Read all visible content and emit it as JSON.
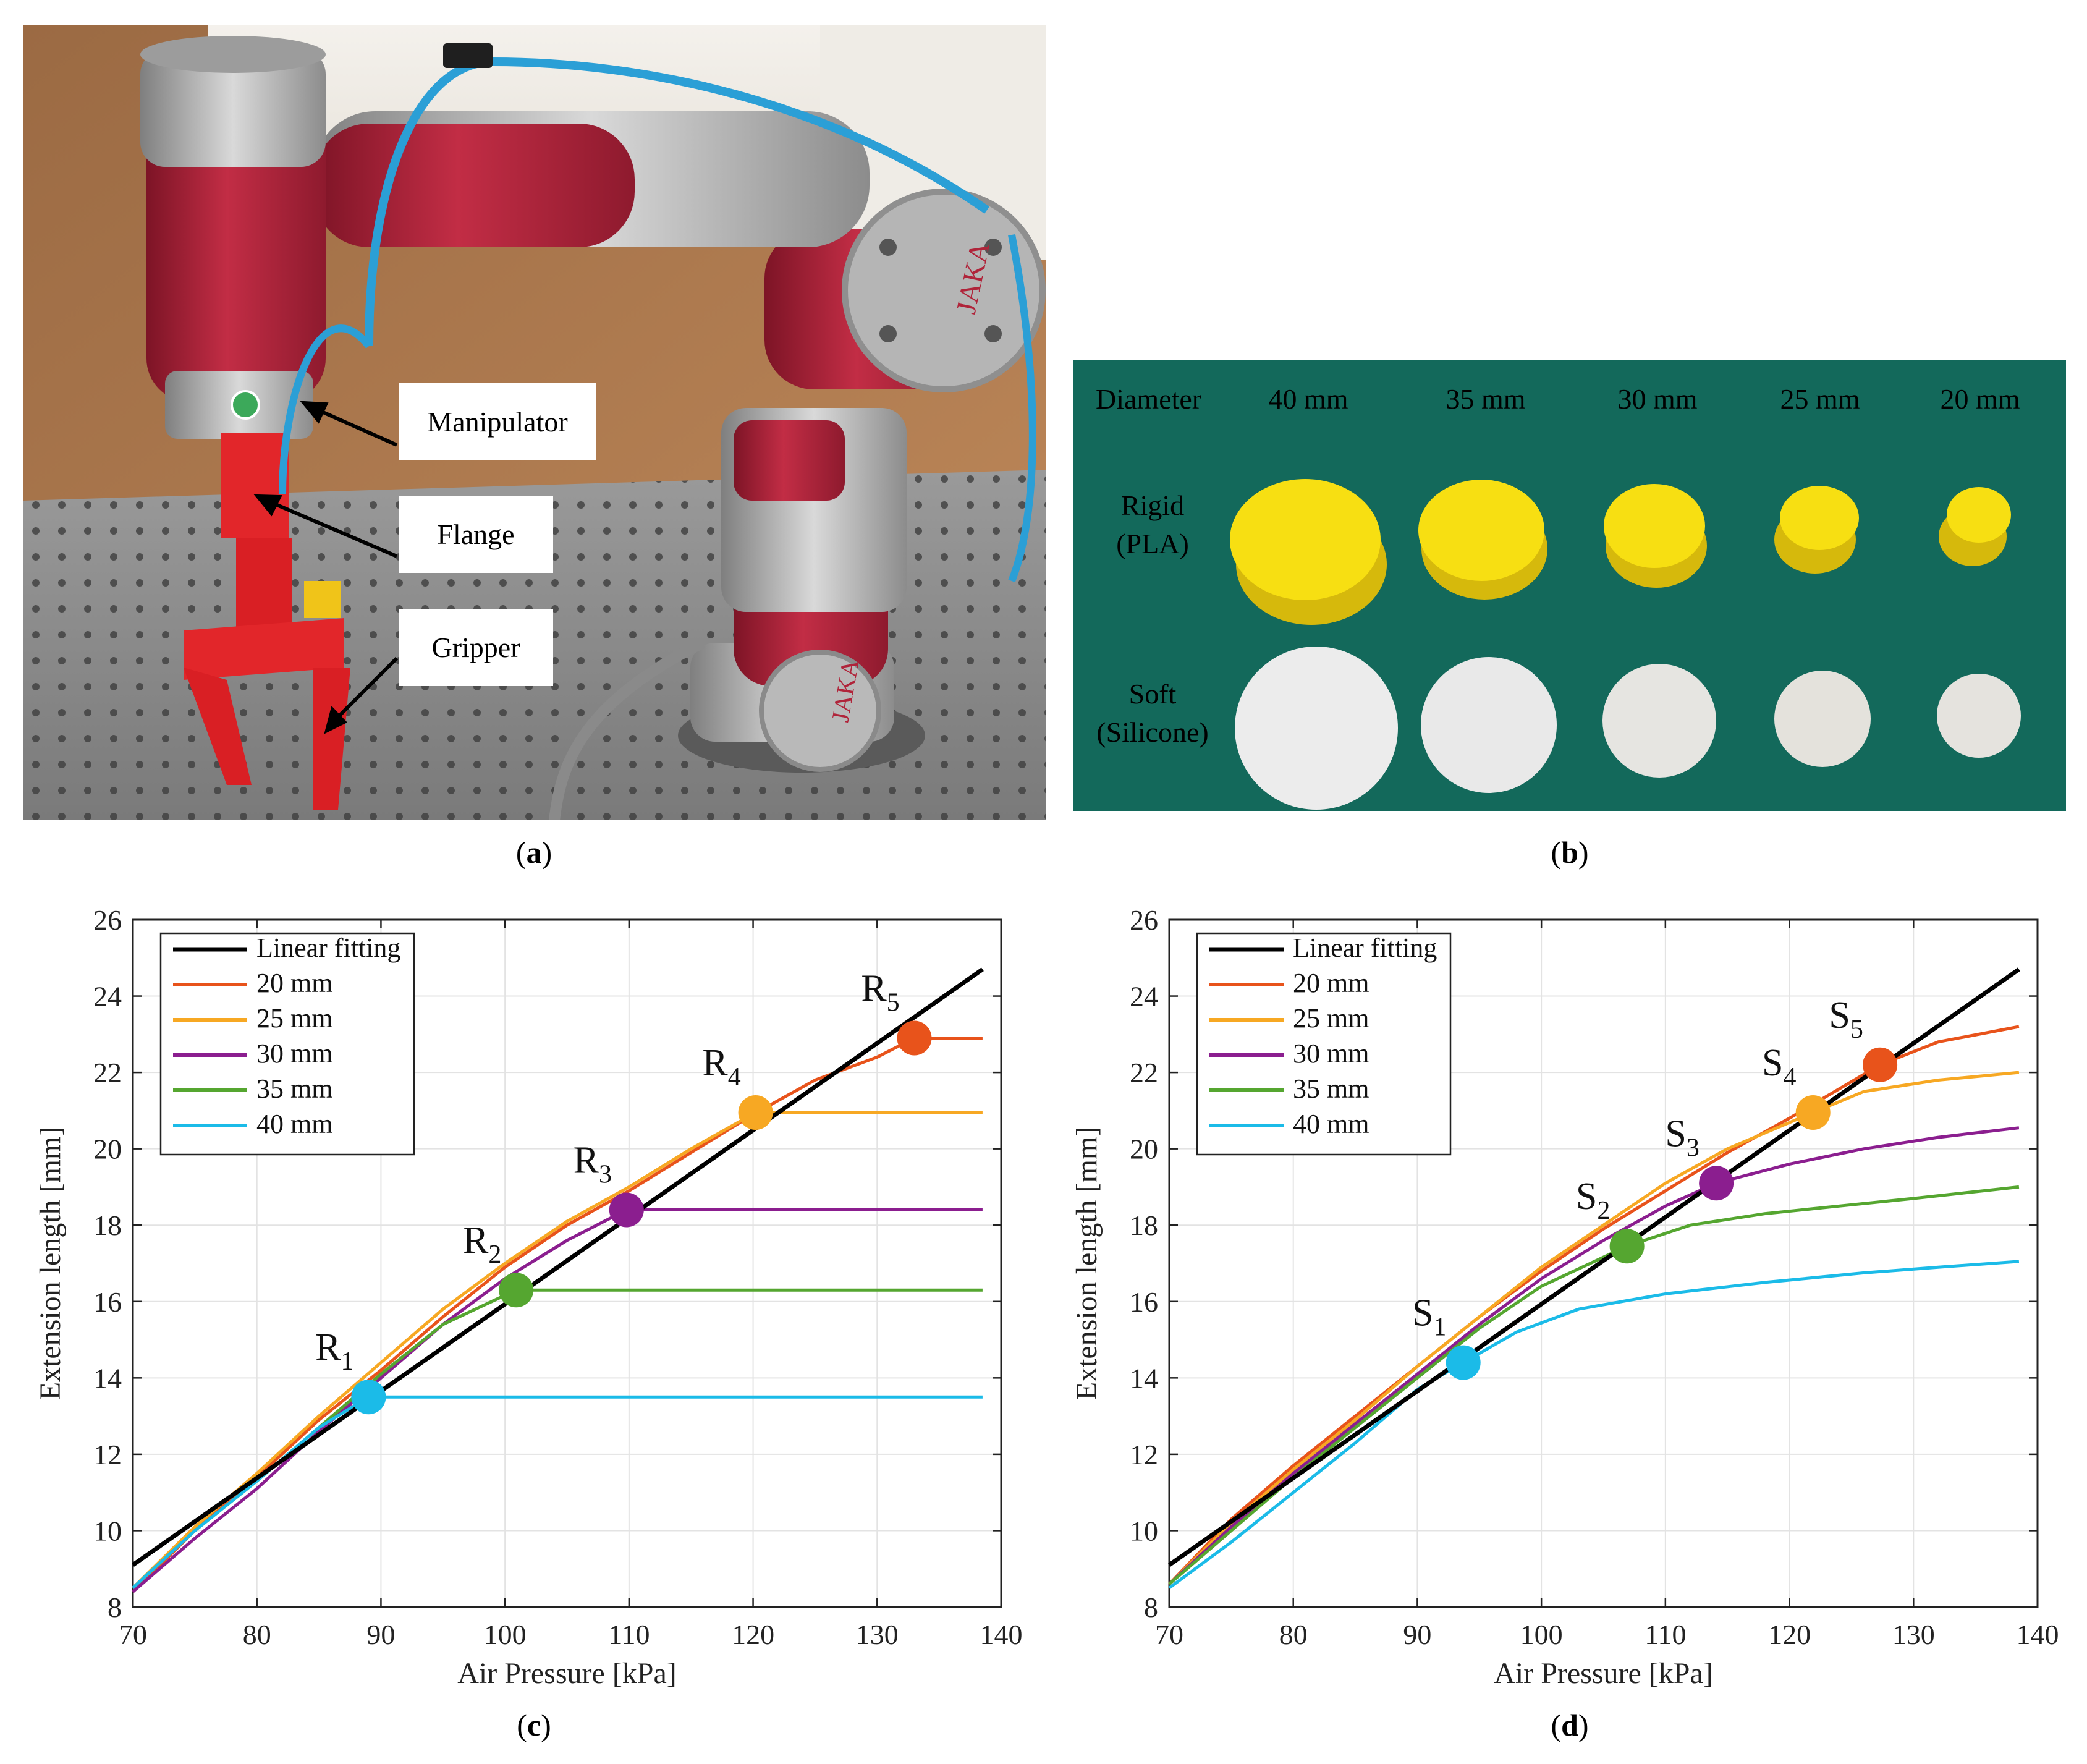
{
  "panels": {
    "a": {
      "caption_letter": "a",
      "callouts": [
        "Manipulator",
        "Flange",
        "Gripper"
      ],
      "logo_text": [
        "JAKA",
        "JAKA"
      ],
      "colors": {
        "robot_red": "#b0243a",
        "robot_silver": "#a9a9a9",
        "floor": "#a8744a",
        "table": "#8c8c8c"
      }
    },
    "b": {
      "caption_letter": "b",
      "header": "Diameter",
      "diameters": [
        "40 mm",
        "35 mm",
        "30 mm",
        "25 mm",
        "20 mm"
      ],
      "row_labels": [
        {
          "line1": "Rigid",
          "line2": "(PLA)"
        },
        {
          "line1": "Soft",
          "line2": "(Silicone)"
        }
      ],
      "colors": {
        "background": "#13695b",
        "rigid": "#f7df12",
        "soft": "#ececec"
      }
    },
    "c": {
      "caption_letter": "c"
    },
    "d": {
      "caption_letter": "d"
    }
  },
  "chart_data": [
    {
      "panel": "c",
      "type": "line",
      "xlabel": "Air Pressure [kPa]",
      "ylabel": "Extension length [mm]",
      "xlim": [
        70,
        140
      ],
      "ylim": [
        8,
        26
      ],
      "xticks": [
        70,
        80,
        90,
        100,
        110,
        120,
        130,
        140
      ],
      "yticks": [
        8,
        10,
        12,
        14,
        16,
        18,
        20,
        22,
        24,
        26
      ],
      "grid": true,
      "legend_position": "top-left",
      "series": [
        {
          "name": "Linear fitting",
          "color": "#000000",
          "x": [
            70,
            138.5
          ],
          "y": [
            9.1,
            24.7
          ]
        },
        {
          "name": "20 mm",
          "color": "#e8531b",
          "x": [
            70,
            75,
            80,
            85,
            90,
            95,
            100,
            105,
            110,
            115,
            120,
            125,
            130,
            133,
            138.5
          ],
          "y": [
            8.4,
            10.0,
            11.4,
            12.9,
            14.2,
            15.6,
            16.9,
            18.0,
            18.9,
            19.9,
            20.9,
            21.8,
            22.4,
            22.9,
            22.9
          ]
        },
        {
          "name": "25 mm",
          "color": "#f7a823",
          "x": [
            70,
            75,
            80,
            85,
            90,
            95,
            100,
            105,
            110,
            115,
            120.2,
            138.5
          ],
          "y": [
            8.5,
            10.1,
            11.5,
            13.0,
            14.4,
            15.8,
            17.0,
            18.1,
            19.0,
            20.0,
            20.95,
            20.95
          ]
        },
        {
          "name": "30 mm",
          "color": "#8b1e8f",
          "x": [
            70,
            75,
            80,
            85,
            90,
            95,
            100,
            105,
            109.8,
            138.5
          ],
          "y": [
            8.4,
            9.8,
            11.1,
            12.6,
            14.0,
            15.4,
            16.6,
            17.6,
            18.4,
            18.4
          ]
        },
        {
          "name": "35 mm",
          "color": "#55a630",
          "x": [
            70,
            75,
            80,
            85,
            90,
            95,
            100.9,
            138.5
          ],
          "y": [
            8.5,
            10.0,
            11.3,
            12.7,
            14.1,
            15.4,
            16.3,
            16.3
          ]
        },
        {
          "name": "40 mm",
          "color": "#1bbbe8",
          "x": [
            70,
            75,
            80,
            85,
            89,
            138.5
          ],
          "y": [
            8.5,
            10.0,
            11.3,
            12.7,
            13.5,
            13.5
          ]
        }
      ],
      "points": [
        {
          "label": "R",
          "sub": "1",
          "x": 89.0,
          "y": 13.5,
          "color": "#1bbbe8"
        },
        {
          "label": "R",
          "sub": "2",
          "x": 100.9,
          "y": 16.3,
          "color": "#55a630"
        },
        {
          "label": "R",
          "sub": "3",
          "x": 109.8,
          "y": 18.4,
          "color": "#8b1e8f"
        },
        {
          "label": "R",
          "sub": "4",
          "x": 120.2,
          "y": 20.95,
          "color": "#f7a823"
        },
        {
          "label": "R",
          "sub": "5",
          "x": 133.0,
          "y": 22.9,
          "color": "#e8531b"
        }
      ]
    },
    {
      "panel": "d",
      "type": "line",
      "xlabel": "Air Pressure [kPa]",
      "ylabel": "Extension length [mm]",
      "xlim": [
        70,
        140
      ],
      "ylim": [
        8,
        26
      ],
      "xticks": [
        70,
        80,
        90,
        100,
        110,
        120,
        130,
        140
      ],
      "yticks": [
        8,
        10,
        12,
        14,
        16,
        18,
        20,
        22,
        24,
        26
      ],
      "grid": true,
      "legend_position": "top-left",
      "series": [
        {
          "name": "Linear fitting",
          "color": "#000000",
          "x": [
            70,
            138.5
          ],
          "y": [
            9.1,
            24.7
          ]
        },
        {
          "name": "20 mm",
          "color": "#e8531b",
          "x": [
            70,
            75,
            80,
            85,
            90,
            95,
            100,
            105,
            110,
            115,
            120,
            127.3,
            132,
            138.5
          ],
          "y": [
            8.6,
            10.3,
            11.7,
            13.0,
            14.3,
            15.6,
            16.8,
            17.9,
            18.9,
            19.9,
            20.8,
            22.2,
            22.8,
            23.2
          ]
        },
        {
          "name": "25 mm",
          "color": "#f7a823",
          "x": [
            70,
            75,
            80,
            85,
            90,
            95,
            100,
            105,
            110,
            115,
            121.9,
            126,
            132,
            138.5
          ],
          "y": [
            8.6,
            10.2,
            11.6,
            12.9,
            14.3,
            15.6,
            16.9,
            18.0,
            19.1,
            20.0,
            20.95,
            21.5,
            21.8,
            22.0
          ]
        },
        {
          "name": "30 mm",
          "color": "#8b1e8f",
          "x": [
            70,
            75,
            80,
            85,
            90,
            95,
            100,
            105,
            110,
            114.1,
            120,
            126,
            132,
            138.5
          ],
          "y": [
            8.6,
            10.1,
            11.5,
            12.8,
            14.1,
            15.4,
            16.6,
            17.6,
            18.5,
            19.1,
            19.6,
            20.0,
            20.3,
            20.55
          ]
        },
        {
          "name": "35 mm",
          "color": "#55a630",
          "x": [
            70,
            75,
            80,
            85,
            90,
            95,
            100,
            106.9,
            112,
            118,
            124,
            130,
            138.5
          ],
          "y": [
            8.6,
            10.0,
            11.4,
            12.7,
            14.0,
            15.3,
            16.4,
            17.45,
            18.0,
            18.3,
            18.5,
            18.7,
            19.0
          ]
        },
        {
          "name": "40 mm",
          "color": "#1bbbe8",
          "x": [
            70,
            75,
            80,
            85,
            90,
            93.7,
            98,
            103,
            110,
            118,
            126,
            132,
            138.5
          ],
          "y": [
            8.5,
            9.7,
            11.0,
            12.3,
            13.7,
            14.4,
            15.2,
            15.8,
            16.2,
            16.5,
            16.75,
            16.9,
            17.05
          ]
        }
      ],
      "points": [
        {
          "label": "S",
          "sub": "1",
          "x": 93.7,
          "y": 14.4,
          "color": "#1bbbe8"
        },
        {
          "label": "S",
          "sub": "2",
          "x": 106.9,
          "y": 17.45,
          "color": "#55a630"
        },
        {
          "label": "S",
          "sub": "3",
          "x": 114.1,
          "y": 19.1,
          "color": "#8b1e8f"
        },
        {
          "label": "S",
          "sub": "4",
          "x": 121.9,
          "y": 20.95,
          "color": "#f7a823"
        },
        {
          "label": "S",
          "sub": "5",
          "x": 127.3,
          "y": 22.2,
          "color": "#e8531b"
        }
      ]
    }
  ]
}
